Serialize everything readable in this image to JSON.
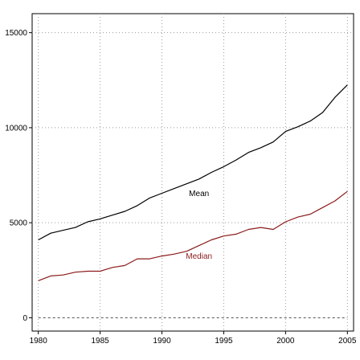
{
  "chart_data": {
    "type": "line",
    "xlim": [
      1979.5,
      2005.5
    ],
    "ylim": [
      -700,
      16000
    ],
    "x_ticks": [
      1980,
      1985,
      1990,
      1995,
      2000,
      2005
    ],
    "y_ticks": [
      0,
      5000,
      10000,
      15000
    ],
    "grid": true,
    "zero_line": true,
    "series": [
      {
        "name": "Mean",
        "color": "#000000",
        "label_at": [
          1993,
          6400
        ],
        "x": [
          1980,
          1981,
          1982,
          1983,
          1984,
          1985,
          1986,
          1987,
          1988,
          1989,
          1990,
          1991,
          1992,
          1993,
          1994,
          1995,
          1996,
          1997,
          1998,
          1999,
          2000,
          2001,
          2002,
          2003,
          2004,
          2005
        ],
        "values": [
          4100,
          4450,
          4600,
          4750,
          5050,
          5200,
          5400,
          5600,
          5900,
          6300,
          6550,
          6800,
          7050,
          7300,
          7650,
          7950,
          8300,
          8700,
          8950,
          9250,
          9800,
          10050,
          10350,
          10800,
          11600,
          12250
        ]
      },
      {
        "name": "Median",
        "color": "#8b1a1a",
        "label_at": [
          1993,
          3100
        ],
        "x": [
          1980,
          1981,
          1982,
          1983,
          1984,
          1985,
          1986,
          1987,
          1988,
          1989,
          1990,
          1991,
          1992,
          1993,
          1994,
          1995,
          1996,
          1997,
          1998,
          1999,
          2000,
          2001,
          2002,
          2003,
          2004,
          2005
        ],
        "values": [
          1950,
          2200,
          2250,
          2400,
          2450,
          2450,
          2650,
          2750,
          3100,
          3100,
          3250,
          3350,
          3500,
          3800,
          4100,
          4300,
          4400,
          4650,
          4750,
          4650,
          5050,
          5300,
          5450,
          5800,
          6150,
          6650
        ]
      }
    ]
  }
}
